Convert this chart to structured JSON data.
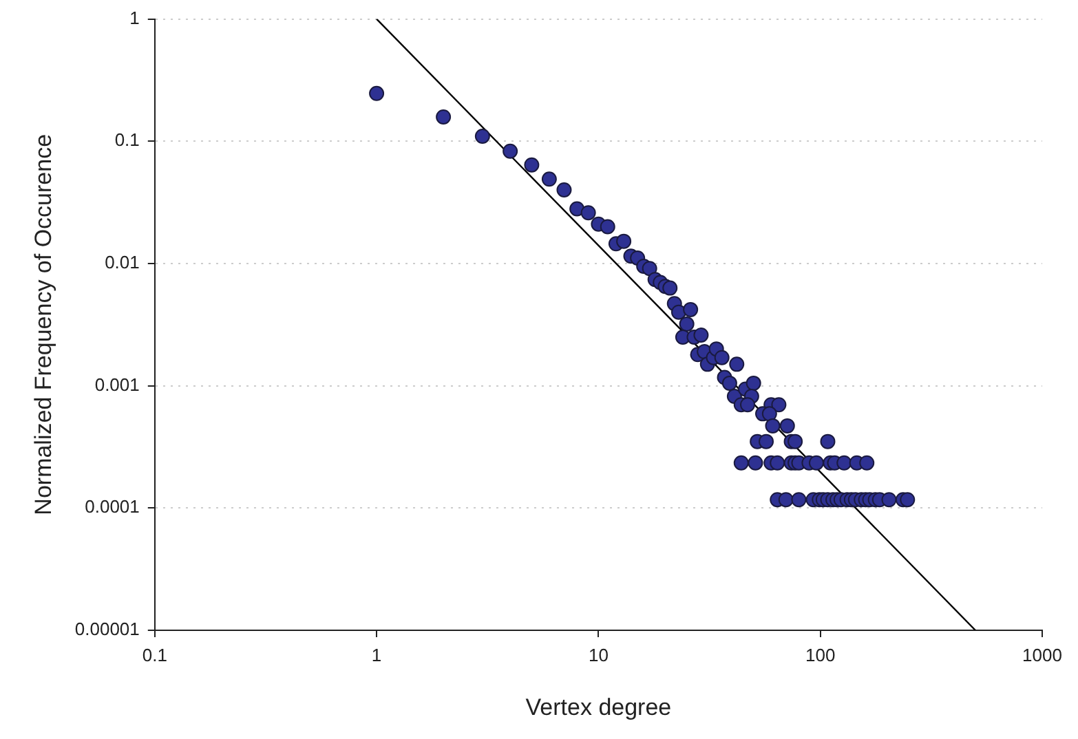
{
  "chart_data": {
    "type": "scatter",
    "xlabel": "Vertex degree",
    "ylabel": "Normalized Frequency of Occurence",
    "log": "xy",
    "grid": "y",
    "marker": "circle",
    "xlim": [
      0.1,
      1000
    ],
    "xticks": [
      0.1,
      1,
      10,
      100,
      1000
    ],
    "ylim": [
      1e-05,
      1
    ],
    "yticks": [
      {
        "value": 1e-05,
        "label": "0.00001"
      },
      0.0001,
      0.001,
      0.01,
      0.1,
      1
    ],
    "series": [
      {
        "color": "#2e3192",
        "x": [
          1,
          2,
          3,
          4,
          5,
          6,
          7,
          8,
          9,
          10,
          11,
          12,
          13,
          14,
          15,
          16,
          17,
          18,
          19,
          20,
          21,
          22,
          23,
          26,
          25,
          24,
          27,
          29,
          28,
          30,
          31,
          33,
          34,
          36,
          42,
          37,
          39,
          41,
          46,
          50,
          49,
          44,
          47,
          60,
          65,
          55,
          59,
          61,
          71,
          52,
          57,
          74,
          77,
          108,
          44,
          51,
          60,
          64,
          74,
          77,
          80,
          89,
          96,
          111,
          116,
          128,
          146,
          162,
          64,
          70,
          80,
          93,
          99,
          103,
          108,
          114,
          119,
          124,
          132,
          138,
          144,
          153,
          160,
          167,
          177,
          185,
          204,
          236,
          247
        ],
        "values": [
          0.246,
          0.158,
          0.11,
          0.083,
          0.064,
          0.049,
          0.04,
          0.028,
          0.026,
          0.021,
          0.02,
          0.0145,
          0.0152,
          0.0115,
          0.0111,
          0.0095,
          0.0091,
          0.0074,
          0.007,
          0.0065,
          0.0063,
          0.0047,
          0.004,
          0.0042,
          0.0032,
          0.0025,
          0.0025,
          0.0026,
          0.0018,
          0.0019,
          0.0015,
          0.0017,
          0.002,
          0.0017,
          0.0015,
          0.00117,
          0.00105,
          0.00082,
          0.00094,
          0.00105,
          0.00082,
          0.0007,
          0.0007,
          0.0007,
          0.0007,
          0.00059,
          0.00059,
          0.00047,
          0.00047,
          0.00035,
          0.00035,
          0.00035,
          0.00035,
          0.00035,
          0.000234,
          0.000234,
          0.000234,
          0.000234,
          0.000234,
          0.000234,
          0.000234,
          0.000234,
          0.000234,
          0.000234,
          0.000234,
          0.000234,
          0.000234,
          0.000234,
          0.000117,
          0.000117,
          0.000117,
          0.000117,
          0.000117,
          0.000117,
          0.000117,
          0.000117,
          0.000117,
          0.000117,
          0.000117,
          0.000117,
          0.000117,
          0.000117,
          0.000117,
          0.000117,
          0.000117,
          0.000117,
          0.000117,
          0.000117,
          0.000117
        ]
      },
      {
        "type": "line",
        "color": "#000000",
        "marker": "none",
        "x": [
          1,
          500
        ],
        "values": [
          1,
          1e-05
        ]
      }
    ]
  }
}
